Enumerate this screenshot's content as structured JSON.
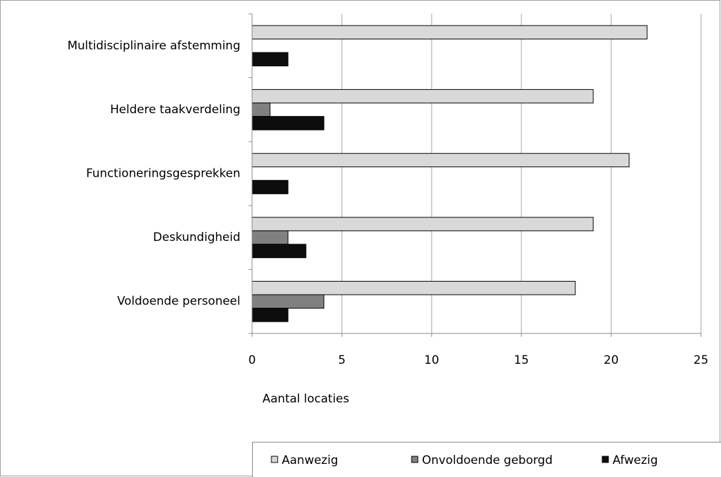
{
  "chart_data": {
    "type": "barh",
    "categories": [
      "Multidisciplinaire afstemming",
      "Heldere taakverdeling",
      "Functioneringsgesprekken",
      "Deskundigheid",
      "Voldoende personeel"
    ],
    "series": [
      {
        "name": "Aanwezig",
        "color": "#d9d9d9",
        "values": [
          22,
          19,
          21,
          19,
          18
        ]
      },
      {
        "name": "Onvoldoende geborgd",
        "color": "#808080",
        "values": [
          0,
          1,
          0,
          2,
          4
        ]
      },
      {
        "name": "Afwezig",
        "color": "#0d0d0d",
        "values": [
          2,
          4,
          2,
          3,
          2
        ]
      }
    ],
    "xlabel": "Aantal locaties",
    "xlim": [
      0,
      25
    ],
    "xticks": [
      0,
      5,
      10,
      15,
      20,
      25
    ],
    "grid": true,
    "legend": "bottom"
  }
}
